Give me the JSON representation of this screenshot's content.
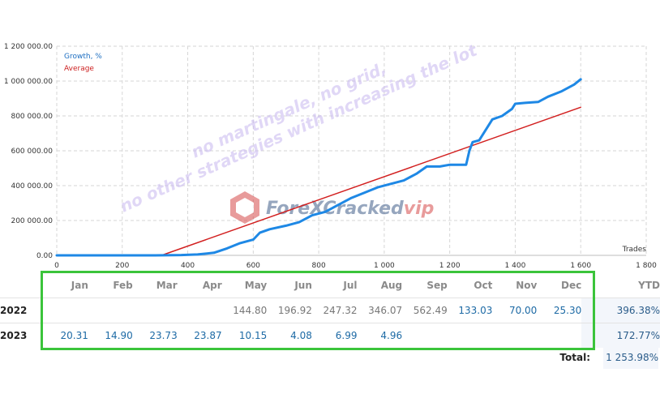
{
  "chart_data": {
    "type": "line",
    "x_ticks": [
      "0",
      "200",
      "400",
      "600",
      "800",
      "1 000",
      "1 200",
      "1 400",
      "1 600",
      "1 800"
    ],
    "y_ticks": [
      "0.00",
      "200 000.00",
      "400 000.00",
      "600 000.00",
      "800 000.00",
      "1 000 000.00",
      "1 200 000.00"
    ],
    "xlabel": "Trades",
    "xlim": [
      0,
      1800
    ],
    "ylim": [
      0,
      1200000
    ],
    "grid": true,
    "legend_position": "top-left",
    "series": [
      {
        "name": "Growth, %",
        "color": "#1e88e5",
        "x": [
          0,
          300,
          380,
          430,
          480,
          520,
          560,
          600,
          620,
          650,
          700,
          740,
          780,
          820,
          860,
          900,
          940,
          980,
          1020,
          1060,
          1100,
          1130,
          1170,
          1200,
          1230,
          1250,
          1260,
          1270,
          1290,
          1310,
          1330,
          1360,
          1390,
          1400,
          1430,
          1470,
          1500,
          1540,
          1580,
          1600
        ],
        "y": [
          0,
          0,
          2000,
          5000,
          15000,
          40000,
          70000,
          90000,
          130000,
          150000,
          170000,
          190000,
          230000,
          250000,
          290000,
          330000,
          360000,
          390000,
          410000,
          430000,
          470000,
          510000,
          510000,
          520000,
          520000,
          520000,
          600000,
          650000,
          660000,
          720000,
          780000,
          800000,
          840000,
          870000,
          875000,
          880000,
          910000,
          940000,
          980000,
          1010000
        ]
      },
      {
        "name": "Average",
        "color": "#d21f1f",
        "x": [
          320,
          1600
        ],
        "y": [
          0,
          850000
        ]
      }
    ]
  },
  "watermark": {
    "line1": "no martingale, no grid,",
    "line2": "no other strategies with increasing the lot",
    "logo_main": "ForeXCracked",
    "logo_vip": "vip"
  },
  "returns_table": {
    "months": [
      "Jan",
      "Feb",
      "Mar",
      "Apr",
      "May",
      "Jun",
      "Jul",
      "Aug",
      "Sep",
      "Oct",
      "Nov",
      "Dec"
    ],
    "ytd_label": "YTD",
    "rows": [
      {
        "year": "2022",
        "values": [
          "",
          "",
          "",
          "",
          "144.80",
          "196.92",
          "247.32",
          "346.07",
          "562.49",
          "133.03",
          "70.00",
          "25.30"
        ],
        "ytd": "396.38%"
      },
      {
        "year": "2023",
        "values": [
          "20.31",
          "14.90",
          "23.73",
          "23.87",
          "10.15",
          "4.08",
          "6.99",
          "4.96",
          "",
          "",
          "",
          ""
        ],
        "ytd": "172.77%"
      }
    ],
    "total_label": "Total:",
    "total_value": "1 253.98%"
  },
  "colors": {
    "value_gray": "#777777",
    "value_blue": "#1d6aa5",
    "highlight_border": "#3bc43b"
  }
}
